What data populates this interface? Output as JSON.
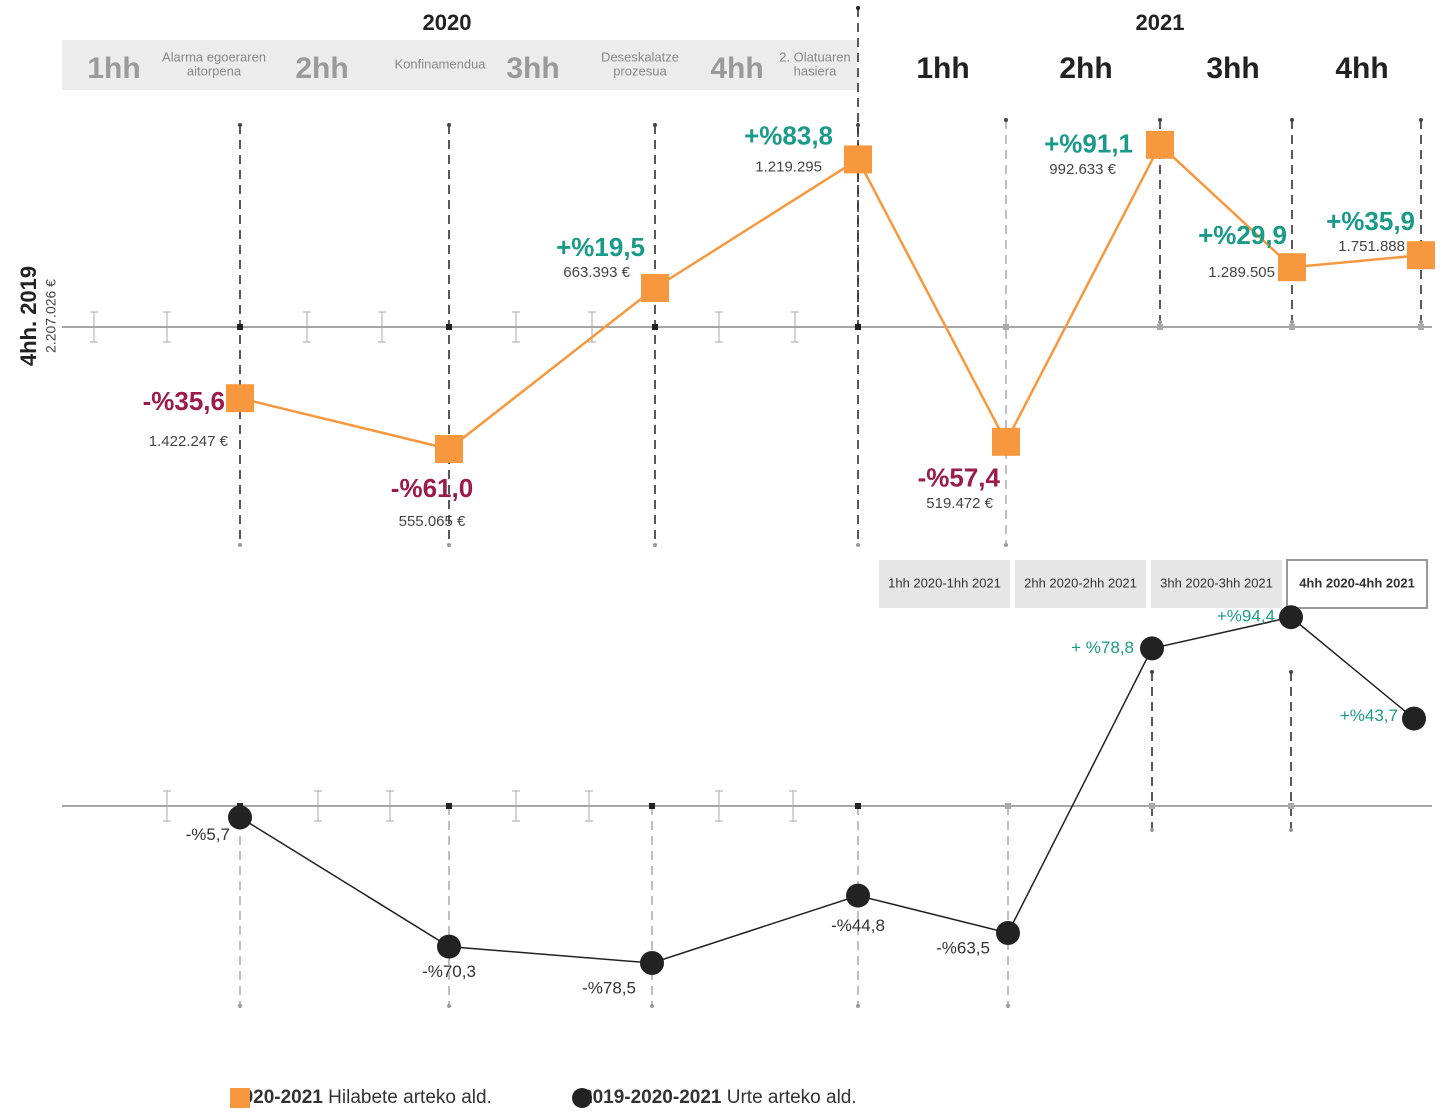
{
  "header": {
    "years": [
      {
        "label": "2020",
        "quarters": [
          "1hh",
          "2hh",
          "3hh",
          "4hh"
        ],
        "events": [
          [
            "Alarma egoeraren",
            "aitorpena"
          ],
          [
            "Konfinamendua"
          ],
          [
            "Deseskalatze",
            "prozesua"
          ],
          [
            "2. Olatuaren",
            "hasiera"
          ]
        ]
      },
      {
        "label": "2021",
        "quarters": [
          "1hh",
          "2hh",
          "3hh",
          "4hh"
        ]
      }
    ]
  },
  "chart_data": [
    {
      "type": "line",
      "marker": "square",
      "color": "#f7983f",
      "positive_color": "#1a9a8a",
      "negative_color": "#9b1b4a",
      "baseline_label": "4hh. 2019",
      "baseline_amount": "2.207.026 €",
      "values": [
        -35.6,
        -61.0,
        19.5,
        83.8,
        -57.4,
        91.1,
        29.9,
        35.9
      ],
      "value_labels": [
        "-%35,6",
        "-%61,0",
        "+%19,5",
        "+%83,8",
        "-%57,4",
        "+%91,1",
        "+%29,9",
        "+%35,9"
      ],
      "annotations": [
        "1.422.247 €",
        "555.065 €",
        "663.393 €",
        "1.219.295",
        "519.472 €",
        "992.633 €",
        "1.289.505",
        "1.751.888"
      ],
      "ylim": [
        -100,
        100
      ]
    },
    {
      "type": "line",
      "marker": "circle",
      "color": "#222222",
      "positive_color": "#1a9a8a",
      "negative_color": "#333333",
      "values": [
        -5.7,
        -70.3,
        -78.5,
        -44.8,
        -63.5,
        78.8,
        94.4,
        43.7
      ],
      "value_labels": [
        "-%5,7",
        "-%70,3",
        "-%78,5",
        "-%44,8",
        "-%63,5",
        "+ %78,8",
        "+%94,4",
        "+%43,7"
      ],
      "ylim": [
        -100,
        100
      ]
    }
  ],
  "buttons": [
    "1hh 2020-1hh 2021",
    "2hh 2020-2hh 2021",
    "3hh 2020-3hh 2021",
    "4hh 2020-4hh 2021"
  ],
  "selected_button": 3,
  "legend": [
    {
      "period": "2020-2021",
      "text": "Hilabete arteko ald."
    },
    {
      "period": "2019-2020-2021",
      "text": "Urte arteko ald."
    }
  ]
}
